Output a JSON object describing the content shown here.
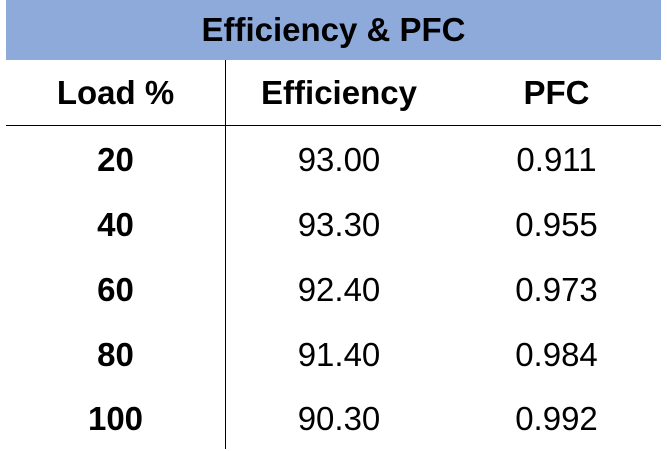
{
  "chart_data": {
    "type": "table",
    "title": "Efficiency & PFC",
    "columns": [
      "Load %",
      "Efficiency",
      "PFC"
    ],
    "rows": [
      [
        "20",
        "93.00",
        "0.911"
      ],
      [
        "40",
        "93.30",
        "0.955"
      ],
      [
        "60",
        "92.40",
        "0.973"
      ],
      [
        "80",
        "91.40",
        "0.984"
      ],
      [
        "100",
        "90.30",
        "0.992"
      ]
    ]
  },
  "colors": {
    "title_bar": "#8eaadb"
  }
}
